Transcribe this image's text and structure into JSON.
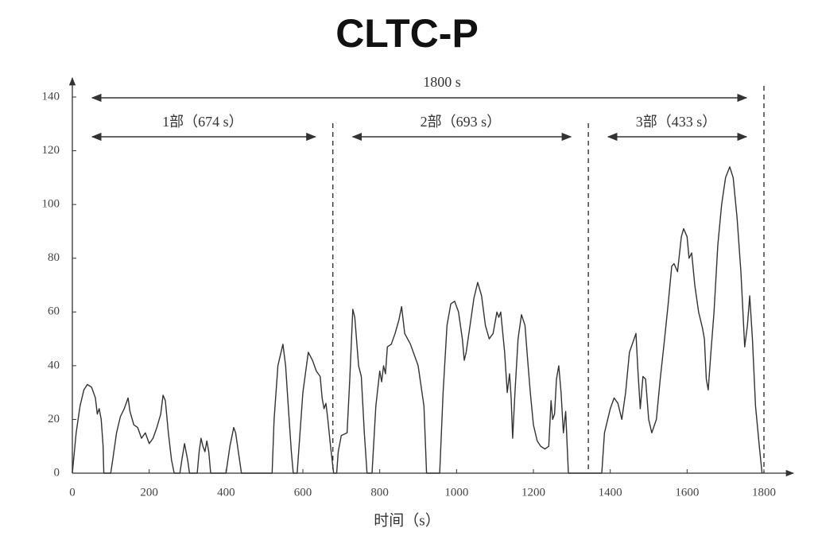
{
  "chart_data": {
    "type": "line",
    "title": "CLTC-P",
    "x_label": "时间（s）",
    "annotations": [
      "1800 s",
      "1部（674 s）",
      "2部（693 s）",
      "3部（433 s）"
    ],
    "dividers": [
      678,
      1343,
      1800
    ],
    "color": "#333333",
    "xlim": [
      0,
      1800
    ],
    "ylim": [
      0,
      140
    ],
    "xticks": [
      0,
      200,
      400,
      600,
      800,
      1000,
      1200,
      1400,
      1600,
      1800
    ],
    "yticks": [
      0,
      20,
      40,
      60,
      80,
      100,
      120,
      140
    ],
    "x": [
      0,
      10,
      20,
      30,
      39,
      50,
      60,
      65,
      70,
      75,
      80,
      82,
      100,
      105,
      115,
      125,
      135,
      145,
      150,
      160,
      170,
      180,
      190,
      200,
      210,
      220,
      230,
      236,
      242,
      250,
      258,
      265,
      280,
      285,
      292,
      300,
      305,
      325,
      330,
      335,
      340,
      345,
      350,
      355,
      360,
      400,
      410,
      420,
      425,
      435,
      440,
      520,
      525,
      535,
      548,
      555,
      562,
      570,
      575,
      585,
      590,
      600,
      614,
      625,
      635,
      645,
      650,
      655,
      660,
      665,
      672,
      680,
      688,
      692,
      700,
      715,
      722,
      730,
      735,
      745,
      752,
      760,
      767,
      780,
      790,
      800,
      805,
      810,
      815,
      820,
      830,
      840,
      850,
      857,
      865,
      880,
      900,
      915,
      922,
      956,
      965,
      975,
      985,
      995,
      1005,
      1015,
      1020,
      1025,
      1035,
      1045,
      1055,
      1065,
      1075,
      1085,
      1095,
      1105,
      1110,
      1115,
      1125,
      1132,
      1138,
      1142,
      1146,
      1152,
      1160,
      1169,
      1178,
      1185,
      1192,
      1200,
      1210,
      1219,
      1230,
      1240,
      1246,
      1250,
      1255,
      1260,
      1266,
      1272,
      1278,
      1284,
      1288,
      1291,
      1378,
      1385,
      1400,
      1410,
      1420,
      1430,
      1440,
      1450,
      1467,
      1472,
      1478,
      1485,
      1492,
      1500,
      1508,
      1520,
      1530,
      1540,
      1550,
      1560,
      1566,
      1575,
      1585,
      1591,
      1600,
      1605,
      1612,
      1620,
      1630,
      1640,
      1645,
      1650,
      1655,
      1662,
      1670,
      1680,
      1690,
      1700,
      1711,
      1720,
      1730,
      1740,
      1750,
      1757,
      1763,
      1770,
      1778,
      1788,
      1795
    ],
    "values": [
      0,
      15,
      25,
      31,
      33,
      32,
      28,
      22,
      24,
      20,
      10,
      0,
      0,
      5,
      15,
      21,
      24,
      28,
      23,
      18,
      17,
      13,
      15,
      11,
      13,
      17,
      22,
      29,
      27,
      15,
      5,
      0,
      0,
      5,
      11,
      5,
      0,
      0,
      8,
      13,
      10,
      8,
      12,
      8,
      0,
      0,
      10,
      17,
      15,
      5,
      0,
      0,
      20,
      40,
      48,
      40,
      25,
      8,
      0,
      0,
      10,
      30,
      45,
      42,
      38,
      36,
      28,
      24,
      26,
      20,
      10,
      0,
      0,
      8,
      14,
      15,
      35,
      61,
      58,
      40,
      36,
      15,
      0,
      0,
      25,
      38,
      34,
      40,
      37,
      47,
      48,
      52,
      57,
      62,
      52,
      48,
      40,
      25,
      0,
      0,
      30,
      55,
      63,
      64,
      60,
      50,
      42,
      45,
      55,
      65,
      71,
      66,
      55,
      50,
      52,
      60,
      58,
      60,
      45,
      30,
      37,
      28,
      13,
      30,
      50,
      59,
      55,
      42,
      30,
      18,
      12,
      10,
      9,
      10,
      27,
      20,
      22,
      35,
      40,
      30,
      15,
      23,
      10,
      0,
      0,
      15,
      24,
      28,
      26,
      20,
      30,
      45,
      52,
      38,
      24,
      36,
      35,
      20,
      15,
      20,
      35,
      48,
      62,
      77,
      78,
      75,
      88,
      91,
      88,
      80,
      82,
      70,
      60,
      54,
      50,
      35,
      31,
      45,
      60,
      85,
      100,
      110,
      114,
      110,
      95,
      75,
      47,
      55,
      66,
      50,
      25,
      10,
      0
    ]
  }
}
